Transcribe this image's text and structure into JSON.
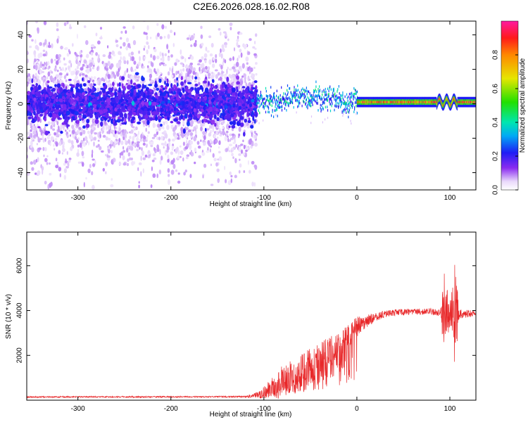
{
  "title": "C2E6.2026.028.16.02.R08",
  "chart_data": [
    {
      "type": "heatmap",
      "xlabel": "Height of straight line (km)",
      "ylabel": "Frequency (Hz)",
      "xlim": [
        -355,
        128
      ],
      "ylim": [
        -50,
        48
      ],
      "x_ticks": [
        -300,
        -200,
        -100,
        0,
        100
      ],
      "x_tick_labels": [
        "-300",
        "-200",
        "-100",
        "0",
        "100"
      ],
      "y_ticks": [
        -40,
        -20,
        0,
        20,
        40
      ],
      "y_tick_labels": [
        "-40",
        "-20",
        "0",
        "20",
        "40"
      ],
      "colorbar": {
        "label": "Normalized spectral amplitude",
        "range": [
          0,
          1
        ],
        "ticks": [
          0.0,
          0.2,
          0.4,
          0.6,
          0.8
        ],
        "tick_labels": [
          "0.0",
          "0.2",
          "0.4",
          "0.6",
          "0.8"
        ],
        "colormap": "rainbow (white-violet-blue-cyan-green-yellow-red-magenta)"
      },
      "regions": [
        {
          "x": [
            -355,
            -108
          ],
          "description_freq_spread_hz": 48,
          "core_band_hz": [
            -12,
            12
          ],
          "amplitude": [
            0.0,
            0.25
          ]
        },
        {
          "x": [
            -108,
            0
          ],
          "band_center_hz": 2,
          "band_width_hz": 8,
          "amplitude": [
            0.2,
            0.6
          ]
        },
        {
          "x": [
            0,
            128
          ],
          "band_center_hz": 1,
          "band_width_hz": 4,
          "amplitude": [
            0.5,
            1.0
          ]
        }
      ],
      "grid": false
    },
    {
      "type": "line",
      "xlabel": "Height of straight line (km)",
      "ylabel": "SNR (10 * v/v)",
      "xlim": [
        -355,
        128
      ],
      "ylim": [
        0,
        7500
      ],
      "x_ticks": [
        -300,
        -200,
        -100,
        0,
        100
      ],
      "x_tick_labels": [
        "-300",
        "-200",
        "-100",
        "0",
        "100"
      ],
      "y_ticks": [
        2000,
        4000,
        6000
      ],
      "y_tick_labels": [
        "2000",
        "4000",
        "6000"
      ],
      "line_color": "#e8282a",
      "series": [
        {
          "x": [
            -355,
            -300,
            -250,
            -200,
            -150,
            -120,
            -105,
            -95,
            -85,
            -75,
            -65,
            -55,
            -45,
            -35,
            -25,
            -15,
            -5,
            0,
            10,
            20,
            30,
            40,
            60,
            80,
            90,
            95,
            100,
            105,
            110,
            128
          ],
          "values": [
            140,
            150,
            145,
            150,
            155,
            160,
            250,
            450,
            700,
            950,
            1200,
            1500,
            1750,
            2000,
            2300,
            2700,
            3000,
            3300,
            3500,
            3700,
            3850,
            3900,
            3950,
            3950,
            3900,
            3700,
            3900,
            3900,
            3850,
            3850
          ],
          "noise_envelope": [
            30,
            30,
            30,
            30,
            30,
            40,
            150,
            400,
            700,
            700,
            700,
            700,
            700,
            700,
            700,
            600,
            500,
            500,
            300,
            200,
            150,
            150,
            150,
            150,
            150,
            2500,
            400,
            2800,
            200,
            150
          ]
        }
      ],
      "grid": false
    }
  ]
}
